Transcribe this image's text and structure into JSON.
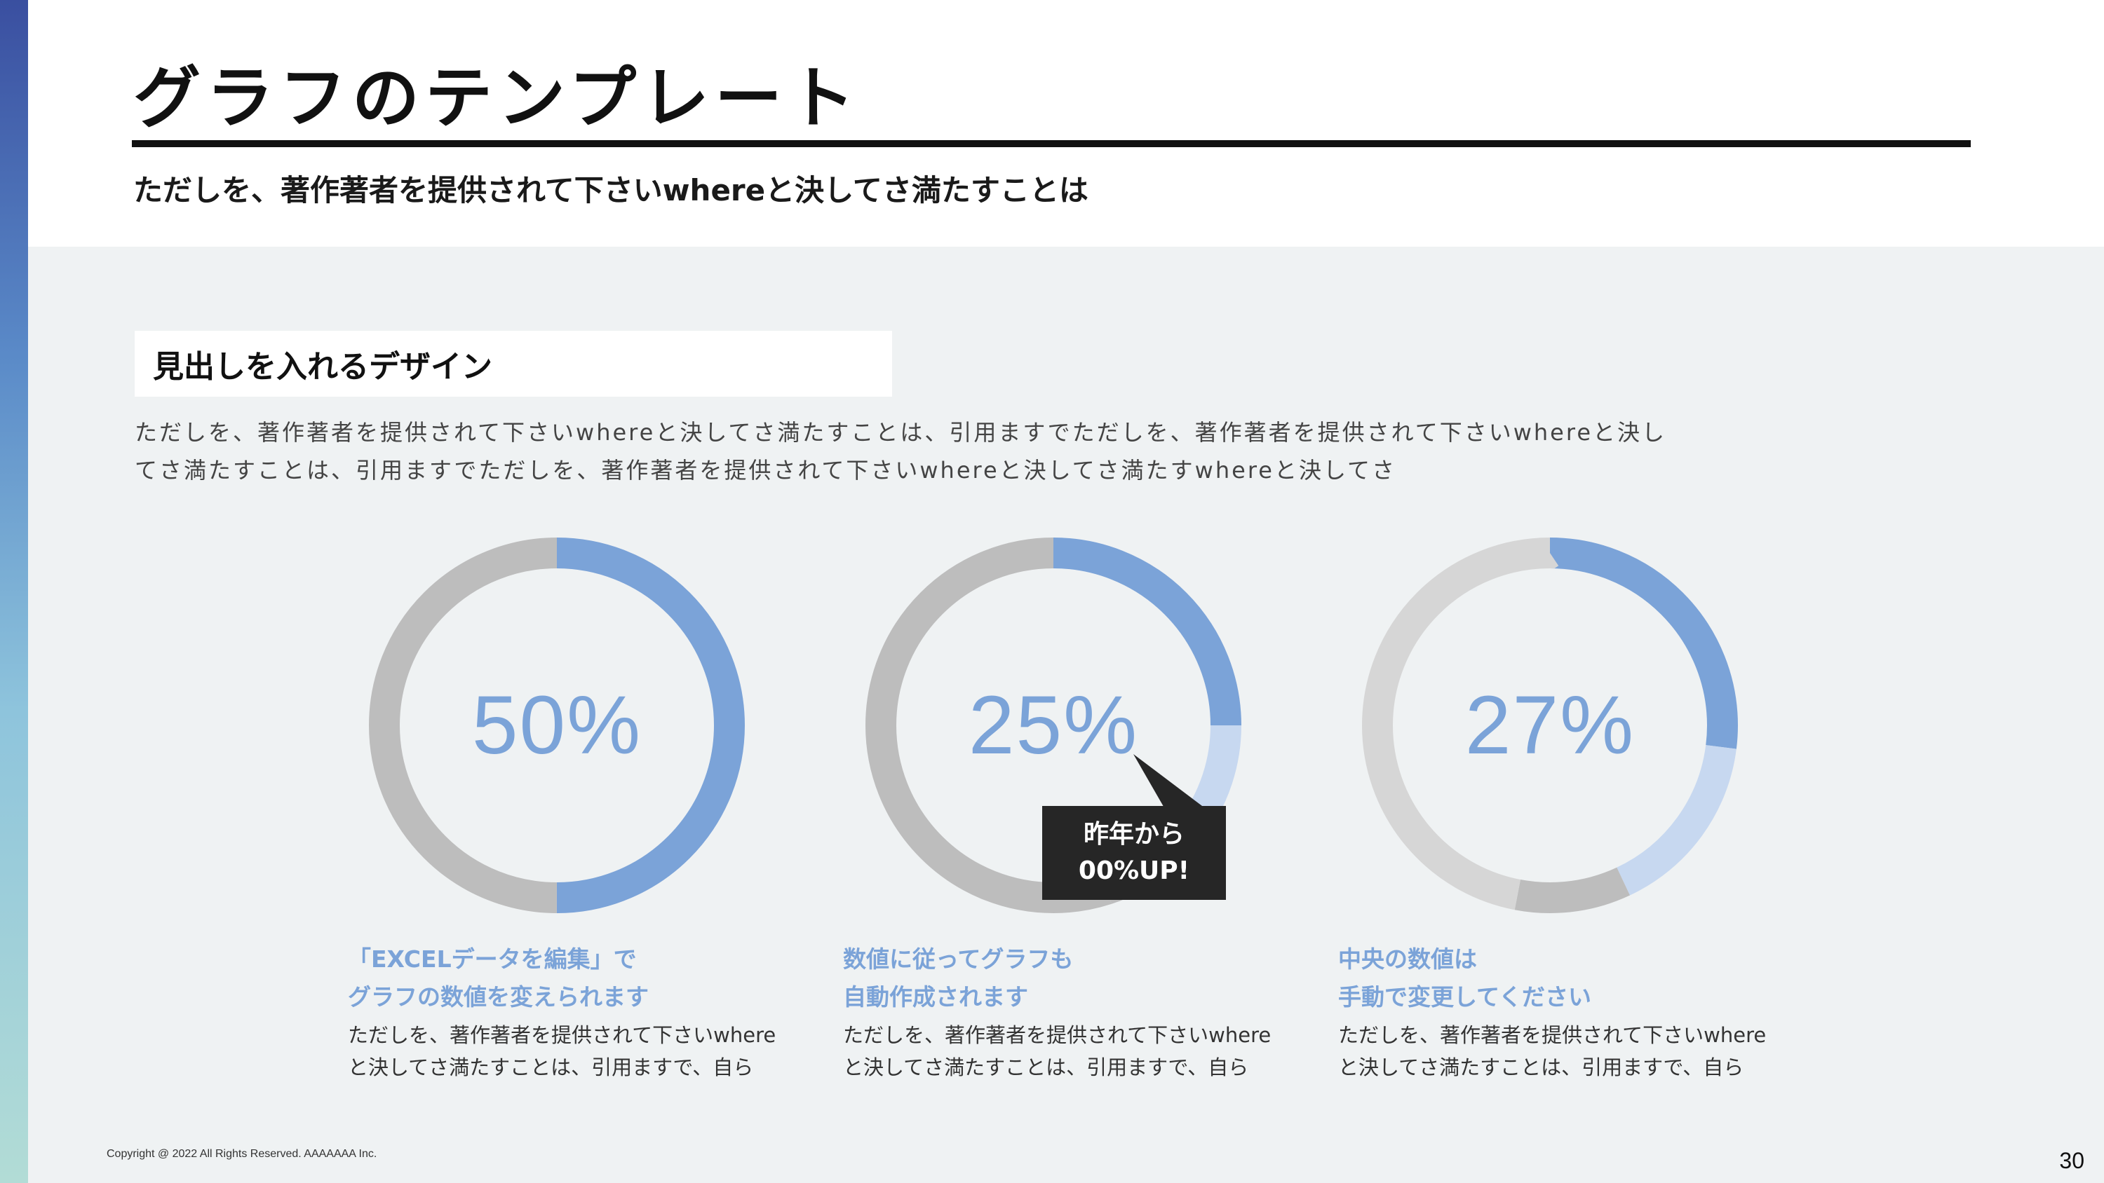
{
  "slide": {
    "title": "グラフのテンプレート",
    "subtitle": "ただしを、著作著者を提供されて下さいwhereと決してさ満たすことは",
    "section_heading": "見出しを入れるデザイン",
    "body_lines": [
      "ただしを、著作著者を提供されて下さいwhereと決してさ満たすことは、引用ますでただしを、著作著者を提供されて下さいwhereと決し",
      "てさ満たすことは、引用ますでただしを、著作著者を提供されて下さいwhereと決してさ満たすwhereと決してさ"
    ],
    "copyright": "Copyright @ 2022 All Rights Reserved. AAAAAAA Inc.",
    "page_number": "30"
  },
  "colors": {
    "accent_blue": "#7ba3d8",
    "light_blue": "#c7d8f0",
    "gray": "#bdbdbd",
    "light_gray": "#d6d6d6",
    "background": "#eff2f3",
    "callout_bg": "#262626"
  },
  "charts": [
    {
      "value_label": "50%",
      "caption_head": [
        "「EXCELデータを編集」で",
        "グラフの数値を変えられます"
      ],
      "caption_body": [
        "ただしを、著作著者を提供されて下さいwhere",
        "と決してさ満たすことは、引用ますで、自ら"
      ]
    },
    {
      "value_label": "25%",
      "caption_head": [
        "数値に従ってグラフも",
        "自動作成されます"
      ],
      "caption_body": [
        "ただしを、著作著者を提供されて下さいwhere",
        "と決してさ満たすことは、引用ますで、自ら"
      ],
      "callout": [
        "昨年から",
        "00%UP!"
      ]
    },
    {
      "value_label": "27%",
      "caption_head": [
        "中央の数値は",
        "手動で変更してください"
      ],
      "caption_body": [
        "ただしを、著作著者を提供されて下さいwhere",
        "と決してさ満たすことは、引用ますで、自ら"
      ]
    }
  ],
  "chart_data": [
    {
      "type": "pie",
      "donut": true,
      "series": [
        {
          "values": [
            50,
            50
          ],
          "colors": [
            "#7ba3d8",
            "#bdbdbd"
          ]
        }
      ]
    },
    {
      "type": "pie",
      "donut": true,
      "series": [
        {
          "values": [
            25,
            10,
            10,
            55
          ],
          "colors": [
            "#7ba3d8",
            "#c7d8f0",
            "#bdbdbd",
            "#bdbdbd"
          ]
        }
      ]
    },
    {
      "type": "pie",
      "donut": true,
      "series": [
        {
          "values": [
            27,
            16,
            10,
            47
          ],
          "colors": [
            "#7ba3d8",
            "#c7d8f0",
            "#bdbdbd",
            "#d6d6d6"
          ]
        }
      ]
    }
  ]
}
